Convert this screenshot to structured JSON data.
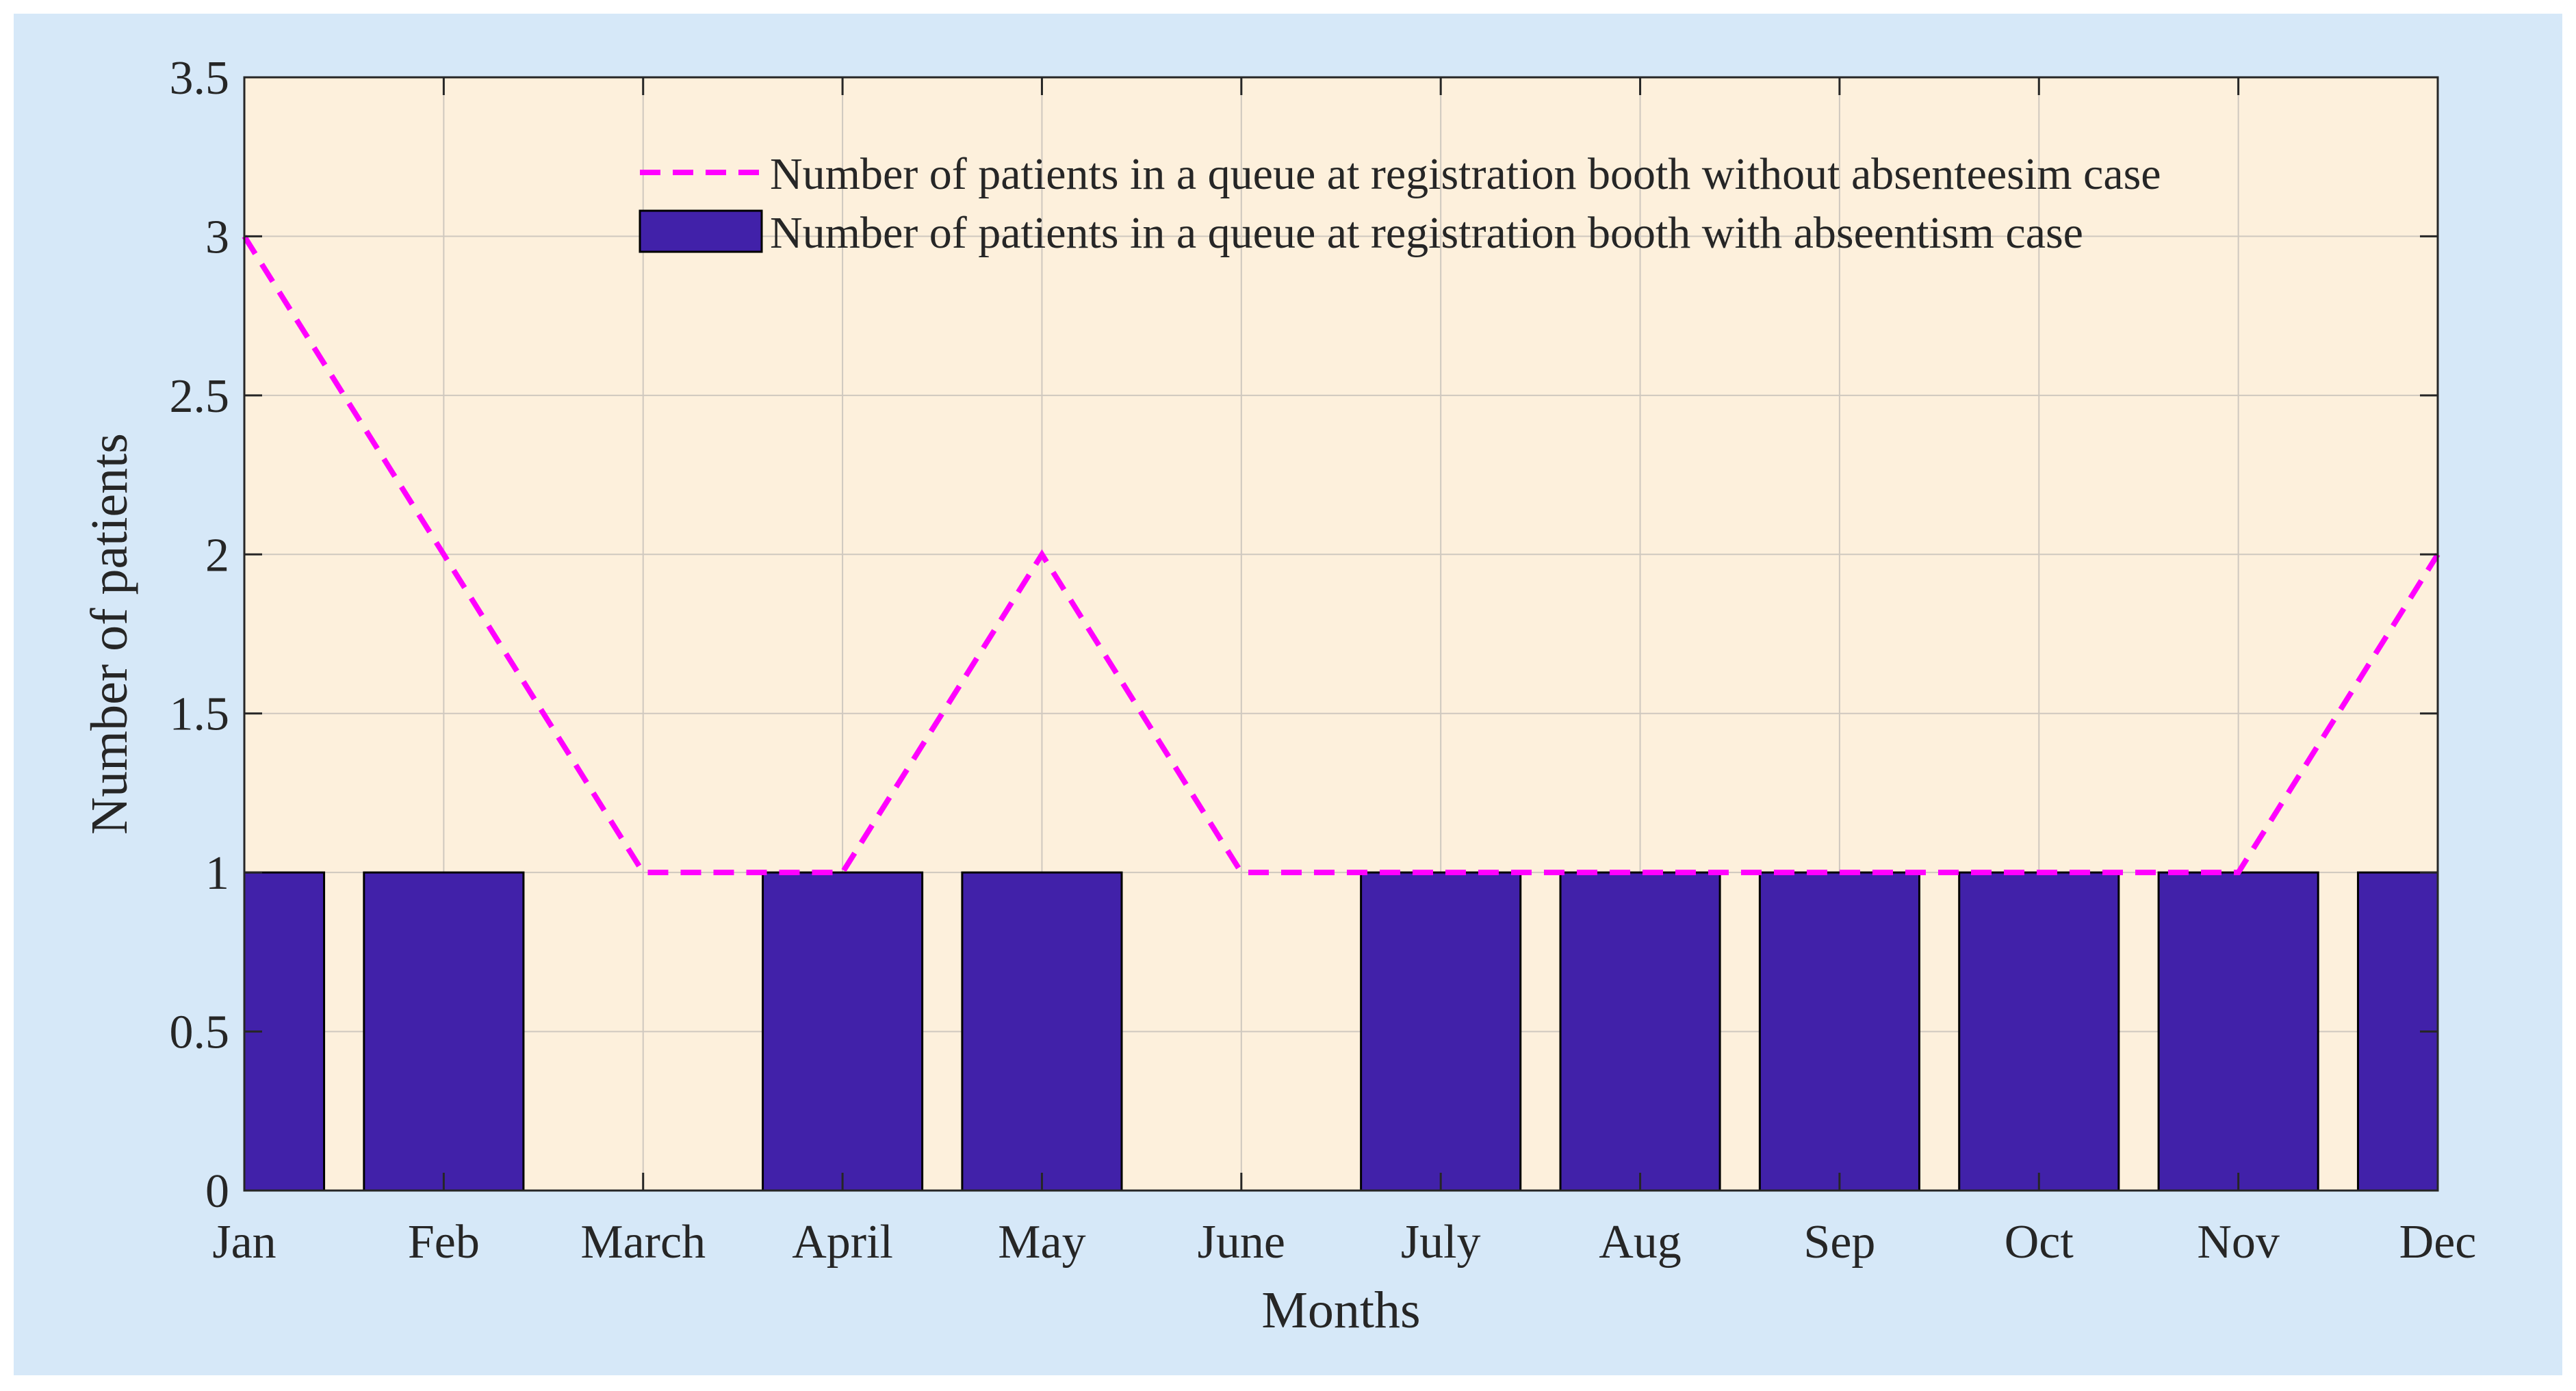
{
  "colors": {
    "page_background": "#ffffff",
    "figure_background": "#d6e8f8",
    "plot_background": "#fdf0dc",
    "bar_fill": "#4121a9",
    "line_color": "#ff00ff",
    "axis_color": "#262626",
    "grid_color": "#cfc8bf"
  },
  "chart_data": {
    "type": "bar",
    "title": "",
    "xlabel": "Months",
    "ylabel": "Number of patients",
    "categories": [
      "Jan",
      "Feb",
      "March",
      "April",
      "May",
      "June",
      "July",
      "Aug",
      "Sep",
      "Oct",
      "Nov",
      "Dec"
    ],
    "ylim": [
      0,
      3.5
    ],
    "yticks": [
      0,
      0.5,
      1,
      1.5,
      2,
      2.5,
      3,
      3.5
    ],
    "ytick_labels": [
      "0",
      "0.5",
      "1",
      "1.5",
      "2",
      "2.5",
      "3",
      "3.5"
    ],
    "grid": true,
    "legend_position": "top-right",
    "series": [
      {
        "name": "Number of patients in a queue at registration booth without absenteesim case",
        "type": "line",
        "style": "dashed",
        "values": [
          3,
          2,
          1,
          1,
          2,
          1,
          1,
          1,
          1,
          1,
          1,
          2
        ]
      },
      {
        "name": "Number of patients in a queue at registration booth with abseentism case",
        "type": "bar",
        "values": [
          1,
          1,
          0,
          1,
          1,
          0,
          1,
          1,
          1,
          1,
          1,
          1
        ]
      }
    ]
  }
}
